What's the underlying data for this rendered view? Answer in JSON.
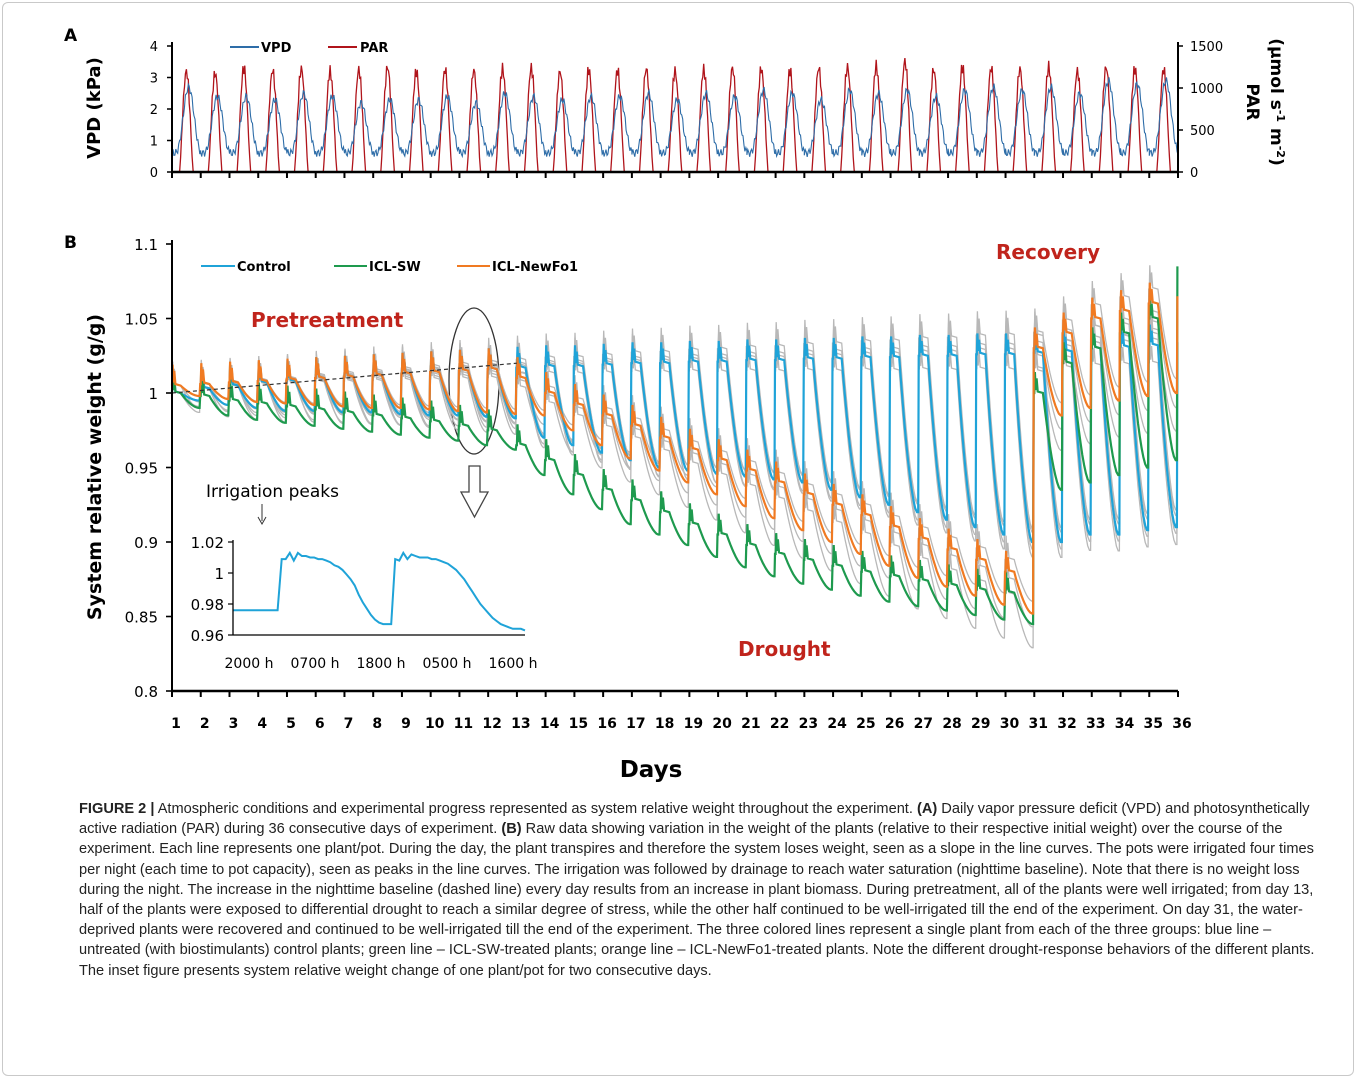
{
  "figure": {
    "panel_labels": [
      "A",
      "B"
    ],
    "x_title": "Days",
    "x_ticks": [
      "1",
      "2",
      "3",
      "4",
      "5",
      "6",
      "7",
      "8",
      "9",
      "10",
      "11",
      "12",
      "13",
      "14",
      "15",
      "16",
      "17",
      "18",
      "19",
      "20",
      "21",
      "22",
      "23",
      "24",
      "25",
      "26",
      "27",
      "28",
      "29",
      "30",
      "31",
      "32",
      "33",
      "34",
      "35",
      "36"
    ],
    "phase_labels": {
      "pretreatment": "Pretreatment",
      "drought": "Drought",
      "recovery": "Recovery"
    }
  },
  "caption": {
    "label": "FIGURE 2 |",
    "s1": " Atmospheric conditions and experimental progress represented as system relative weight throughout the experiment. ",
    "a_tag": "(A)",
    "s2": " Daily vapor pressure deficit (VPD) and photosynthetically active radiation (PAR) during 36 consecutive days of experiment. ",
    "b_tag": "(B)",
    "s3": " Raw data showing variation in the weight of the plants (relative to their respective initial weight) over the course of the experiment. Each line represents one plant/pot. During the day, the plant transpires and therefore the system loses weight, seen as a slope in the line curves. The pots were irrigated four times per night (each time to pot capacity), seen as peaks in the line curves. The irrigation was followed by drainage to reach water saturation (nighttime baseline). Note that there is no weight loss during the night. The increase in the nighttime baseline (dashed line) every day results from an increase in plant biomass. During pretreatment, all of the plants were well irrigated; from day 13, half of the plants were exposed to differential drought to reach a similar degree of stress, while the other half continued to be well-irrigated till the end of the experiment. On day 31, the water-deprived plants were recovered and continued to be well-irrigated till the end of the experiment. The three colored lines represent a single plant from each of the three groups: blue line – untreated (with biostimulants) control plants; green line – ICL-SW-treated plants; orange line – ICL-NewFo1-treated plants. Note the different drought-response behaviors of the different plants. The inset figure presents system relative weight change of one plant/pot for two consecutive days."
  },
  "chart_data": [
    {
      "panel": "A",
      "type": "line",
      "ylabel": "VPD (kPa)",
      "ylabel_right": "PAR (µmol s-1 m-2)",
      "ylabel_right_parts": [
        "PAR",
        "(µmol s",
        "-1",
        " m",
        "-2",
        ")"
      ],
      "ylim": [
        0,
        4
      ],
      "ylim_right": [
        0,
        1500
      ],
      "yticks": [
        "0",
        "1",
        "2",
        "3",
        "4"
      ],
      "yticks_right": [
        "0",
        "500",
        "1000",
        "1500"
      ],
      "xlim": [
        1,
        36
      ],
      "series": [
        {
          "name": "VPD",
          "color": "#2e6da8",
          "axis": "left",
          "daily_max": [
            2.7,
            2.4,
            2.4,
            2.3,
            2.5,
            2.4,
            2.2,
            2.3,
            2.3,
            2.4,
            2.2,
            2.5,
            2.4,
            2.3,
            2.4,
            2.4,
            2.5,
            2.3,
            2.5,
            2.4,
            2.6,
            2.5,
            2.3,
            2.6,
            2.5,
            2.6,
            2.4,
            2.6,
            2.7,
            2.6,
            2.7,
            2.5,
            2.9,
            2.8,
            2.9,
            3.0
          ],
          "nightly_min": 0.6
        },
        {
          "name": "PAR",
          "color": "#b0141b",
          "axis": "right",
          "daily_max": [
            1200,
            1180,
            1240,
            1210,
            1230,
            1200,
            1220,
            1250,
            1200,
            1220,
            1210,
            1230,
            1240,
            1200,
            1220,
            1210,
            1230,
            1200,
            1220,
            1240,
            1230,
            1210,
            1240,
            1250,
            1260,
            1320,
            1220,
            1250,
            1240,
            1230,
            1250,
            1200,
            1250,
            1230,
            1220,
            1140
          ]
        }
      ]
    },
    {
      "panel": "B",
      "type": "line",
      "ylabel": "System relative weight (g/g)",
      "xlabel": "Days",
      "ylim": [
        0.8,
        1.1
      ],
      "yticks": [
        "0.8",
        "0.85",
        "0.9",
        "0.95",
        "1",
        "1.05",
        "1.1"
      ],
      "xlim": [
        1,
        36
      ],
      "baseline_dashed": {
        "from": [
          1,
          1.0
        ],
        "to": [
          13,
          1.02
        ]
      },
      "series": [
        {
          "name": "Control",
          "color": "#1fa3d8",
          "role": "well-irrigated",
          "night_baseline": [
            1.0,
            1.003,
            1.005,
            1.007,
            1.008,
            1.01,
            1.011,
            1.012,
            1.013,
            1.014,
            1.015,
            1.016,
            1.017,
            1.018,
            1.018,
            1.019,
            1.02,
            1.02,
            1.021,
            1.021,
            1.022,
            1.022,
            1.023,
            1.023,
            1.024,
            1.024,
            1.025,
            1.025,
            1.026,
            1.026,
            1.027,
            1.028,
            1.03,
            1.031,
            1.032,
            1.034
          ],
          "day_min": [
            0.995,
            0.992,
            0.99,
            0.988,
            0.988,
            0.987,
            0.987,
            0.986,
            0.985,
            0.985,
            0.984,
            0.983,
            0.97,
            0.965,
            0.96,
            0.955,
            0.95,
            0.948,
            0.946,
            0.944,
            0.942,
            0.94,
            0.935,
            0.93,
            0.925,
            0.92,
            0.915,
            0.91,
            0.905,
            0.9,
            0.9,
            0.905,
            0.905,
            0.908,
            0.91,
            0.914
          ]
        },
        {
          "name": "ICL-SW",
          "color": "#1e9a4e",
          "role": "drought",
          "night_baseline": [
            1.0,
            0.998,
            0.995,
            0.993,
            0.991,
            0.989,
            0.987,
            0.985,
            0.983,
            0.981,
            0.978,
            0.975,
            0.965,
            0.955,
            0.945,
            0.935,
            0.928,
            0.92,
            0.912,
            0.905,
            0.898,
            0.892,
            0.888,
            0.884,
            0.88,
            0.877,
            0.874,
            0.871,
            0.868,
            0.866,
            1.0,
            1.02,
            1.03,
            1.04,
            1.05,
            1.085
          ],
          "day_min": [
            0.99,
            0.985,
            0.982,
            0.98,
            0.978,
            0.976,
            0.974,
            0.972,
            0.97,
            0.968,
            0.965,
            0.962,
            0.945,
            0.932,
            0.922,
            0.912,
            0.905,
            0.898,
            0.89,
            0.883,
            0.877,
            0.872,
            0.868,
            0.864,
            0.86,
            0.857,
            0.854,
            0.851,
            0.848,
            0.845,
            0.935,
            0.94,
            0.945,
            0.95,
            0.955,
            0.96
          ]
        },
        {
          "name": "ICL-NewFo1",
          "color": "#f07a22",
          "role": "drought",
          "night_baseline": [
            1.005,
            1.006,
            1.007,
            1.008,
            1.009,
            1.01,
            1.011,
            1.012,
            1.013,
            1.014,
            1.015,
            1.016,
            1.01,
            1.0,
            0.992,
            0.985,
            0.978,
            0.97,
            0.962,
            0.955,
            0.948,
            0.94,
            0.932,
            0.925,
            0.918,
            0.91,
            0.902,
            0.895,
            0.888,
            0.88,
            1.03,
            1.04,
            1.05,
            1.055,
            1.06,
            1.065
          ],
          "day_min": [
            0.998,
            0.996,
            0.994,
            0.993,
            0.992,
            0.991,
            0.99,
            0.99,
            0.989,
            0.988,
            0.987,
            0.986,
            0.985,
            0.975,
            0.965,
            0.956,
            0.948,
            0.94,
            0.932,
            0.924,
            0.916,
            0.908,
            0.9,
            0.892,
            0.884,
            0.876,
            0.87,
            0.864,
            0.858,
            0.852,
            0.985,
            0.99,
            0.995,
            0.998,
            1.0,
            1.002
          ]
        }
      ],
      "annotations": [
        "Pretreatment",
        "Drought",
        "Recovery"
      ]
    },
    {
      "panel": "B-inset",
      "type": "line",
      "title": "Irrigation peaks",
      "xticks": [
        "2000 h",
        "0700 h",
        "1800 h",
        "0500 h",
        "1600 h"
      ],
      "yticks": [
        "0.96",
        "0.98",
        "1",
        "1.02"
      ],
      "ylim": [
        0.96,
        1.02
      ],
      "series": [
        {
          "name": "Control",
          "color": "#1fa3d8",
          "x": [
            0,
            1,
            2,
            3,
            4,
            5,
            6,
            7,
            8,
            9,
            10,
            11,
            12,
            13,
            14,
            15,
            16,
            17,
            18,
            19,
            20,
            21,
            22,
            23,
            24,
            25,
            26,
            27,
            28,
            29,
            30,
            31,
            32,
            33,
            34,
            35,
            36,
            37,
            38,
            39,
            40,
            41,
            42,
            43,
            44,
            45,
            46,
            47,
            48,
            49,
            50,
            51,
            52,
            53,
            54,
            55,
            56,
            57,
            58,
            59,
            60,
            61,
            62,
            63,
            64,
            65,
            66,
            67,
            68,
            69,
            70,
            71,
            72
          ],
          "y": [
            0.976,
            0.976,
            0.976,
            0.976,
            0.976,
            0.976,
            0.976,
            0.976,
            0.976,
            0.976,
            0.976,
            0.976,
            1.009,
            1.009,
            1.013,
            1.008,
            1.013,
            1.011,
            1.011,
            1.01,
            1.01,
            1.009,
            1.009,
            1.008,
            1.007,
            1.005,
            1.004,
            1.002,
            0.999,
            0.996,
            0.992,
            0.986,
            0.981,
            0.977,
            0.973,
            0.97,
            0.968,
            0.967,
            0.967,
            0.967,
            1.009,
            1.008,
            1.013,
            1.009,
            1.012,
            1.011,
            1.01,
            1.01,
            1.01,
            1.009,
            1.009,
            1.008,
            1.007,
            1.006,
            1.004,
            1.002,
            0.999,
            0.996,
            0.992,
            0.988,
            0.984,
            0.98,
            0.977,
            0.974,
            0.971,
            0.969,
            0.967,
            0.966,
            0.965,
            0.964,
            0.964,
            0.964,
            0.963
          ]
        }
      ]
    }
  ]
}
